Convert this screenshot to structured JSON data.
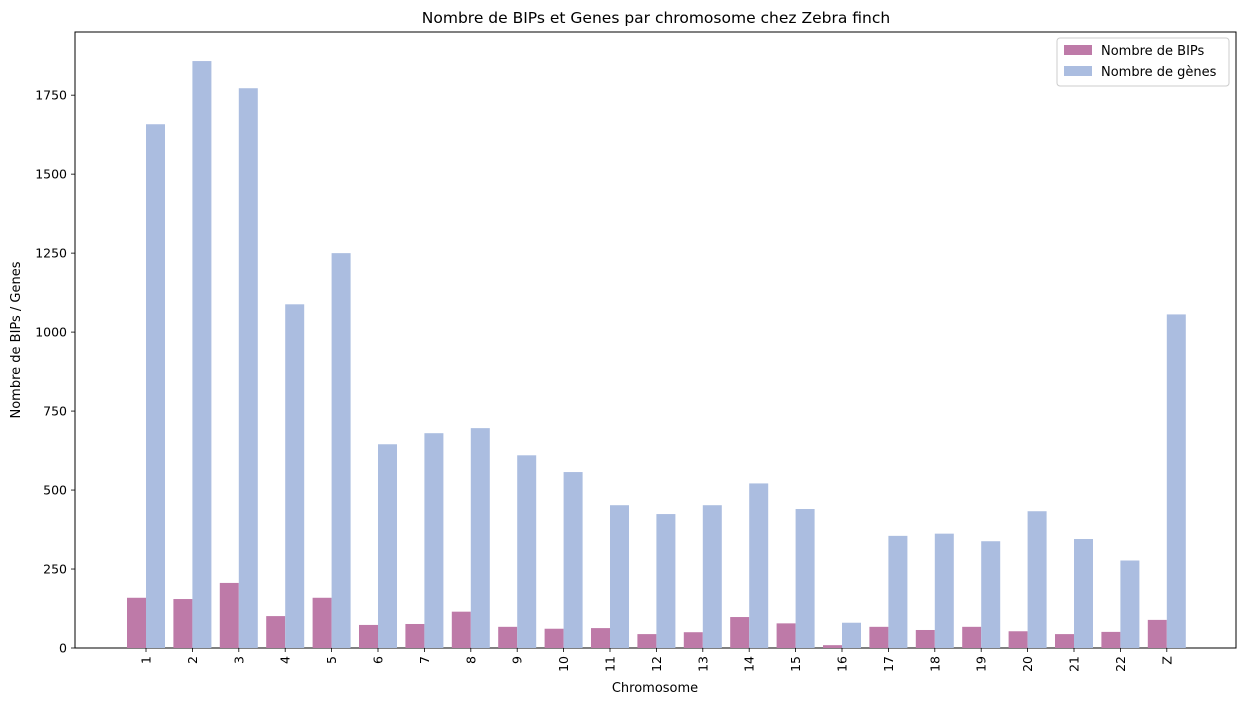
{
  "chart_data": {
    "type": "bar",
    "title": "Nombre de BIPs et Genes par chromosome chez Zebra finch",
    "xlabel": "Chromosome",
    "ylabel": "Nombre de BIPs / Genes",
    "ylim": [
      0,
      1950
    ],
    "yticks": [
      0,
      250,
      500,
      750,
      1000,
      1250,
      1500,
      1750
    ],
    "grid": false,
    "legend_position": "top-right",
    "categories": [
      "1",
      "2",
      "3",
      "4",
      "5",
      "6",
      "7",
      "8",
      "9",
      "10",
      "11",
      "12",
      "13",
      "14",
      "15",
      "16",
      "17",
      "18",
      "19",
      "20",
      "21",
      "22",
      "Z"
    ],
    "series": [
      {
        "name": "Nombre de BIPs",
        "color": "#be7aa8",
        "values": [
          159,
          155,
          206,
          101,
          159,
          73,
          76,
          115,
          67,
          61,
          63,
          44,
          50,
          98,
          78,
          9,
          67,
          57,
          67,
          53,
          44,
          51,
          89
        ]
      },
      {
        "name": "Nombre de gènes",
        "color": "#abbde0",
        "values": [
          1658,
          1858,
          1772,
          1088,
          1250,
          645,
          680,
          696,
          610,
          557,
          452,
          424,
          452,
          521,
          440,
          80,
          355,
          362,
          338,
          433,
          345,
          277,
          1056
        ]
      }
    ]
  }
}
